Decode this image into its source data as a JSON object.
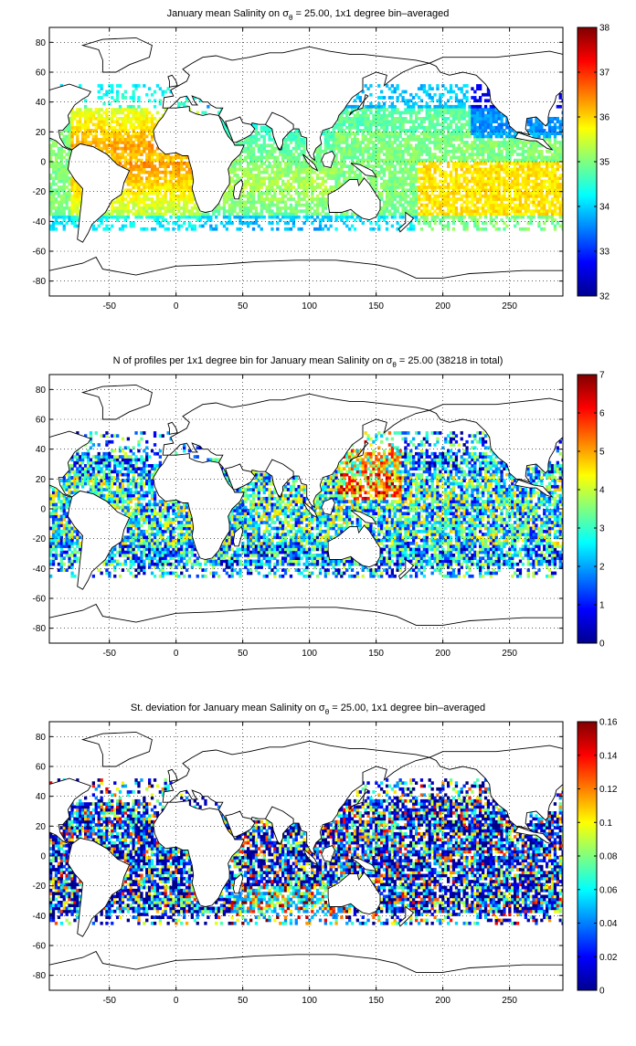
{
  "chart_data": [
    {
      "type": "heatmap",
      "title_prefix": "January mean Salinity on ",
      "title_sigma": "σ",
      "title_sub": "θ",
      "title_suffix": " = 25.00, 1x1 degree bin–averaged",
      "xlim": [
        -95,
        290
      ],
      "ylim": [
        -90,
        90
      ],
      "xticks": [
        "-50",
        "0",
        "50",
        "100",
        "150",
        "200",
        "250"
      ],
      "yticks": [
        "80",
        "60",
        "40",
        "20",
        "0",
        "-20",
        "-40",
        "-60",
        "-80"
      ],
      "grid": true,
      "colorbar": {
        "min": 32,
        "max": 38,
        "ticks": [
          "38",
          "37",
          "36",
          "35",
          "34",
          "33",
          "32"
        ]
      },
      "field": "salinity"
    },
    {
      "type": "heatmap",
      "title_prefix": "N of profiles per 1x1 degree bin for January mean Salinity on ",
      "title_sigma": "σ",
      "title_sub": "θ",
      "title_suffix": " = 25.00 (38218 in total)",
      "xlim": [
        -95,
        290
      ],
      "ylim": [
        -90,
        90
      ],
      "xticks": [
        "-50",
        "0",
        "50",
        "100",
        "150",
        "200",
        "250"
      ],
      "yticks": [
        "80",
        "60",
        "40",
        "20",
        "0",
        "-20",
        "-40",
        "-60",
        "-80"
      ],
      "grid": true,
      "colorbar": {
        "min": 0,
        "max": 7,
        "ticks": [
          "7",
          "6",
          "5",
          "4",
          "3",
          "2",
          "1",
          "0"
        ]
      },
      "field": "count"
    },
    {
      "type": "heatmap",
      "title_prefix": "St. deviation for January mean Salinity on ",
      "title_sigma": "σ",
      "title_sub": "θ",
      "title_suffix": " = 25.00, 1x1 degree bin–averaged",
      "xlim": [
        -95,
        290
      ],
      "ylim": [
        -90,
        90
      ],
      "xticks": [
        "-50",
        "0",
        "50",
        "100",
        "150",
        "200",
        "250"
      ],
      "yticks": [
        "80",
        "60",
        "40",
        "20",
        "0",
        "-20",
        "-40",
        "-60",
        "-80"
      ],
      "grid": true,
      "colorbar": {
        "min": 0,
        "max": 0.16,
        "ticks": [
          "0.16",
          "0.14",
          "0.12",
          "0.1",
          "0.08",
          "0.06",
          "0.04",
          "0.02",
          "0"
        ]
      },
      "field": "stdev"
    }
  ]
}
